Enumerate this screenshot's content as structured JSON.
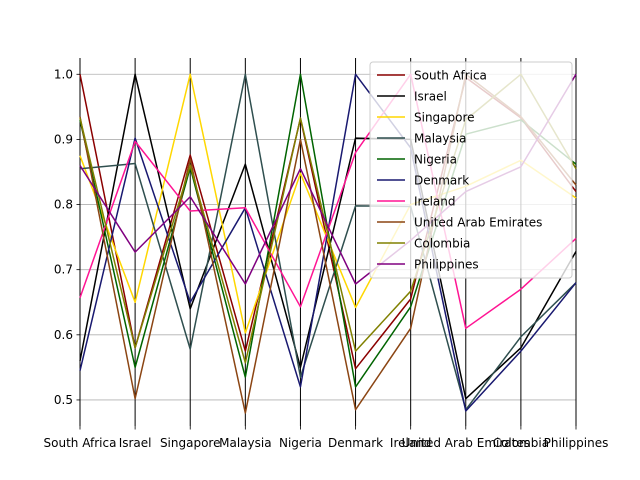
{
  "chart_data": {
    "type": "line",
    "title": "",
    "xlabel": "",
    "ylabel": "",
    "categories": [
      "South Africa",
      "Israel",
      "Singapore",
      "Malaysia",
      "Nigeria",
      "Denmark",
      "Ireland",
      "United Arab Emirates",
      "Colombia",
      "Philippines"
    ],
    "ylim": [
      0.46,
      1.025
    ],
    "yticks": [
      "0.5",
      "0.6",
      "0.7",
      "0.8",
      "0.9",
      "1.0"
    ],
    "grid": true,
    "legend_position": "top-right",
    "series": [
      {
        "name": "South Africa",
        "color": "#8b0000",
        "values": [
          1.0,
          0.58,
          0.876,
          0.575,
          0.932,
          0.548,
          0.655,
          0.995,
          0.933,
          0.82
        ]
      },
      {
        "name": "Israel",
        "color": "#000000",
        "values": [
          0.56,
          1.0,
          0.64,
          0.862,
          0.55,
          0.902,
          0.9,
          0.502,
          0.58,
          0.728
        ]
      },
      {
        "name": "Singapore",
        "color": "#ffd700",
        "values": [
          0.875,
          0.65,
          1.0,
          0.603,
          0.848,
          0.642,
          0.8,
          0.828,
          0.868,
          0.81
        ]
      },
      {
        "name": "Malaysia",
        "color": "#2f4f4f",
        "values": [
          0.855,
          0.863,
          0.578,
          1.0,
          0.535,
          0.798,
          0.797,
          0.485,
          0.597,
          0.68
        ]
      },
      {
        "name": "Nigeria",
        "color": "#006400",
        "values": [
          0.93,
          0.55,
          0.857,
          0.535,
          1.0,
          0.52,
          0.643,
          0.908,
          0.93,
          0.862
        ]
      },
      {
        "name": "Denmark",
        "color": "#191970",
        "values": [
          0.545,
          0.902,
          0.65,
          0.795,
          0.52,
          1.0,
          0.887,
          0.483,
          0.575,
          0.68
        ]
      },
      {
        "name": "Ireland",
        "color": "#ff1493",
        "values": [
          0.657,
          0.897,
          0.79,
          0.795,
          0.643,
          0.88,
          1.0,
          0.61,
          0.67,
          0.748
        ]
      },
      {
        "name": "United Arab Emirates",
        "color": "#8b4513",
        "values": [
          0.935,
          0.502,
          0.87,
          0.48,
          0.9,
          0.485,
          0.61,
          1.0,
          0.935,
          0.83
        ]
      },
      {
        "name": "Colombia",
        "color": "#808000",
        "values": [
          0.933,
          0.58,
          0.86,
          0.557,
          0.933,
          0.575,
          0.667,
          0.93,
          1.0,
          0.855
        ]
      },
      {
        "name": "Philippines",
        "color": "#800080",
        "values": [
          0.86,
          0.727,
          0.812,
          0.678,
          0.855,
          0.678,
          0.745,
          0.82,
          0.858,
          1.0
        ]
      }
    ]
  }
}
